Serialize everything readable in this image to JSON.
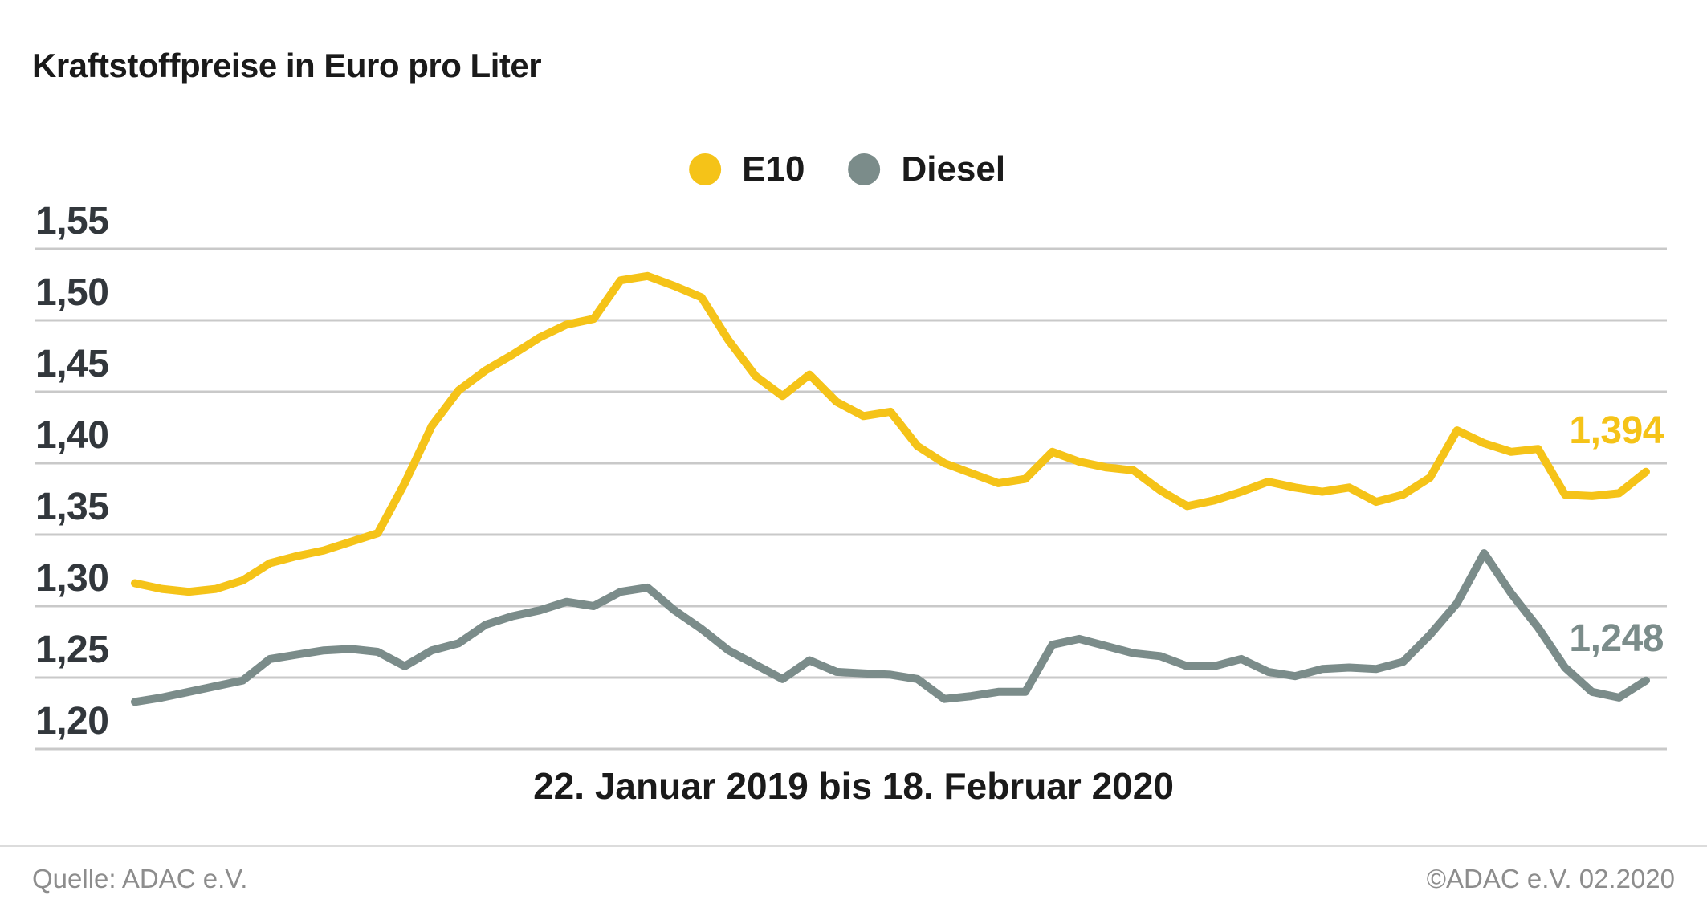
{
  "title": "Kraftstoffpreise in Euro pro Liter",
  "legend": {
    "items": [
      {
        "label": "E10",
        "color": "#F5C318"
      },
      {
        "label": "Diesel",
        "color": "#7B8C8A"
      }
    ]
  },
  "footer": {
    "source": "Quelle: ADAC e.V.",
    "copyright": "©ADAC e.V.  02.2020"
  },
  "colors": {
    "e10": "#F5C318",
    "diesel": "#7B8C8A",
    "gridline": "#c9c9c9",
    "title_text": "#1a1a1a",
    "tick_text": "#32373c",
    "footer_text": "#8d8d8d"
  },
  "chart_data": {
    "type": "line",
    "title": "Kraftstoffpreise in Euro pro Liter",
    "x_caption": "22. Januar 2019 bis 18. Februar 2020",
    "x_axis": {
      "start": "22.01.2019",
      "end": "18.02.2020",
      "interval": "weekly",
      "points": 57
    },
    "ylabel": "Euro pro Liter",
    "ylim": [
      1.175,
      1.585
    ],
    "grid": true,
    "legend_position": "top-center",
    "y_ticks": [
      {
        "label": "1,55",
        "value": 1.55
      },
      {
        "label": "1,50",
        "value": 1.5
      },
      {
        "label": "1,45",
        "value": 1.45
      },
      {
        "label": "1,40",
        "value": 1.4
      },
      {
        "label": "1,35",
        "value": 1.35
      },
      {
        "label": "1,30",
        "value": 1.3
      },
      {
        "label": "1,25",
        "value": 1.25
      },
      {
        "label": "1,20",
        "value": 1.2
      }
    ],
    "series": [
      {
        "name": "E10",
        "color": "#F5C318",
        "end_label": "1,394",
        "end_value": 1.394,
        "values": [
          1.316,
          1.312,
          1.31,
          1.312,
          1.318,
          1.33,
          1.335,
          1.339,
          1.345,
          1.351,
          1.386,
          1.426,
          1.451,
          1.465,
          1.476,
          1.488,
          1.497,
          1.501,
          1.528,
          1.531,
          1.524,
          1.516,
          1.486,
          1.461,
          1.447,
          1.462,
          1.443,
          1.433,
          1.436,
          1.412,
          1.4,
          1.393,
          1.386,
          1.389,
          1.408,
          1.401,
          1.397,
          1.395,
          1.381,
          1.37,
          1.374,
          1.38,
          1.387,
          1.383,
          1.38,
          1.383,
          1.373,
          1.378,
          1.39,
          1.423,
          1.414,
          1.408,
          1.41,
          1.378,
          1.377,
          1.379,
          1.394
        ]
      },
      {
        "name": "Diesel",
        "color": "#7B8C8A",
        "end_label": "1,248",
        "end_value": 1.248,
        "values": [
          1.233,
          1.236,
          1.24,
          1.244,
          1.248,
          1.263,
          1.266,
          1.269,
          1.27,
          1.268,
          1.258,
          1.269,
          1.274,
          1.287,
          1.293,
          1.297,
          1.303,
          1.3,
          1.31,
          1.313,
          1.297,
          1.284,
          1.269,
          1.259,
          1.249,
          1.262,
          1.254,
          1.253,
          1.252,
          1.249,
          1.235,
          1.237,
          1.24,
          1.24,
          1.273,
          1.277,
          1.272,
          1.267,
          1.265,
          1.258,
          1.258,
          1.263,
          1.254,
          1.251,
          1.256,
          1.257,
          1.256,
          1.261,
          1.28,
          1.302,
          1.337,
          1.309,
          1.285,
          1.257,
          1.24,
          1.236,
          1.248
        ]
      }
    ]
  }
}
